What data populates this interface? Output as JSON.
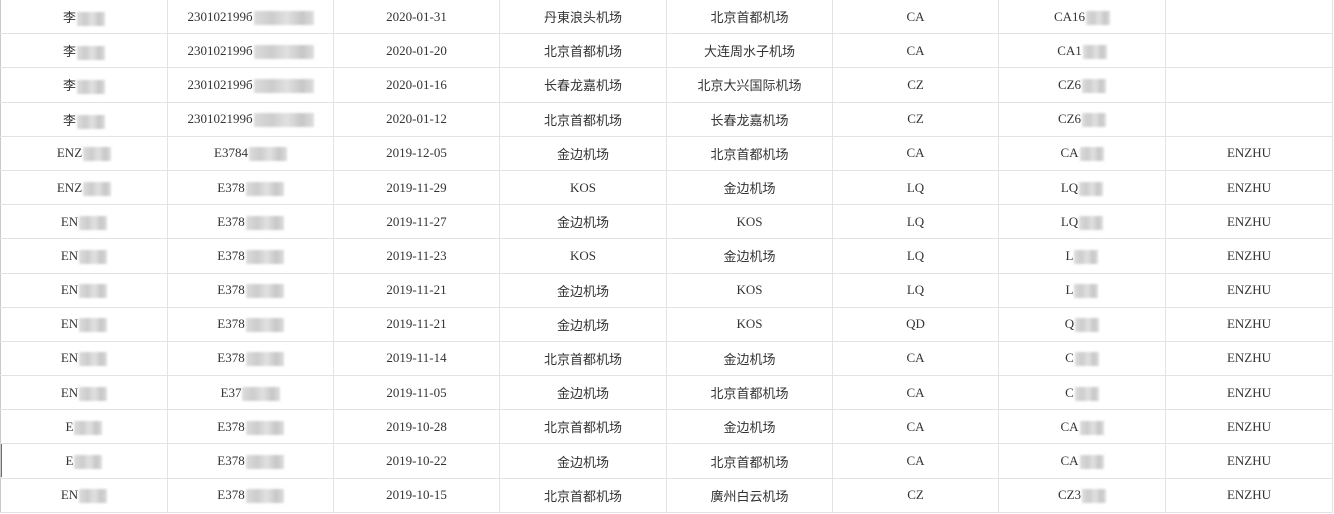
{
  "columns_count": 8,
  "redaction_color": "#c8c8c8",
  "rows": [
    {
      "name": "李",
      "id": "230102199б",
      "date": "2020-01-31",
      "from": "丹東浪头机场",
      "to": "北京首都机场",
      "airline": "CA",
      "flight": "CA16",
      "pax": ""
    },
    {
      "name": "李",
      "id": "230102199б",
      "date": "2020-01-20",
      "from": "北京首都机场",
      "to": "大连周水子机场",
      "airline": "CA",
      "flight": "CA1",
      "pax": ""
    },
    {
      "name": "李",
      "id": "230102199б",
      "date": "2020-01-16",
      "from": "长春龙嘉机场",
      "to": "北京大兴国际机场",
      "airline": "CZ",
      "flight": "CZ6",
      "pax": ""
    },
    {
      "name": "李",
      "id": "230102199б",
      "date": "2020-01-12",
      "from": "北京首都机场",
      "to": "长春龙嘉机场",
      "airline": "CZ",
      "flight": "CZ6",
      "pax": ""
    },
    {
      "name": "ENZ",
      "id": "E3784",
      "date": "2019-12-05",
      "from": "金边机场",
      "to": "北京首都机场",
      "airline": "CA",
      "flight": "CA",
      "pax": "ENZHU"
    },
    {
      "name": "ENZ",
      "id": "E378",
      "date": "2019-11-29",
      "from": "KOS",
      "to": "金边机场",
      "airline": "LQ",
      "flight": "LQ",
      "pax": "ENZHU"
    },
    {
      "name": "EN",
      "id": "E378",
      "date": "2019-11-27",
      "from": "金边机场",
      "to": "KOS",
      "airline": "LQ",
      "flight": "LQ",
      "pax": "ENZHU"
    },
    {
      "name": "EN",
      "id": "E378",
      "date": "2019-11-23",
      "from": "KOS",
      "to": "金边机场",
      "airline": "LQ",
      "flight": "L",
      "pax": "ENZHU"
    },
    {
      "name": "EN",
      "id": "E378",
      "date": "2019-11-21",
      "from": "金边机场",
      "to": "KOS",
      "airline": "LQ",
      "flight": "L",
      "pax": "ENZHU"
    },
    {
      "name": "EN",
      "id": "E378",
      "date": "2019-11-21",
      "from": "金边机场",
      "to": "KOS",
      "airline": "QD",
      "flight": "Q",
      "pax": "ENZHU"
    },
    {
      "name": "EN",
      "id": "E378",
      "date": "2019-11-14",
      "from": "北京首都机场",
      "to": "金边机场",
      "airline": "CA",
      "flight": "C",
      "pax": "ENZHU"
    },
    {
      "name": "EN",
      "id": "E37",
      "date": "2019-11-05",
      "from": "金边机场",
      "to": "北京首都机场",
      "airline": "CA",
      "flight": "C",
      "pax": "ENZHU"
    },
    {
      "name": "E",
      "id": "E378",
      "date": "2019-10-28",
      "from": "北京首都机场",
      "to": "金边机场",
      "airline": "CA",
      "flight": "CA",
      "pax": "ENZHU"
    },
    {
      "name": "E",
      "id": "E378",
      "date": "2019-10-22",
      "from": "金边机场",
      "to": "北京首都机场",
      "airline": "CA",
      "flight": "CA",
      "pax": "ENZHU"
    },
    {
      "name": "EN",
      "id": "E378",
      "date": "2019-10-15",
      "from": "北京首都机场",
      "to": "廣州白云机场",
      "airline": "CZ",
      "flight": "CZ3",
      "pax": "ENZHU"
    }
  ]
}
